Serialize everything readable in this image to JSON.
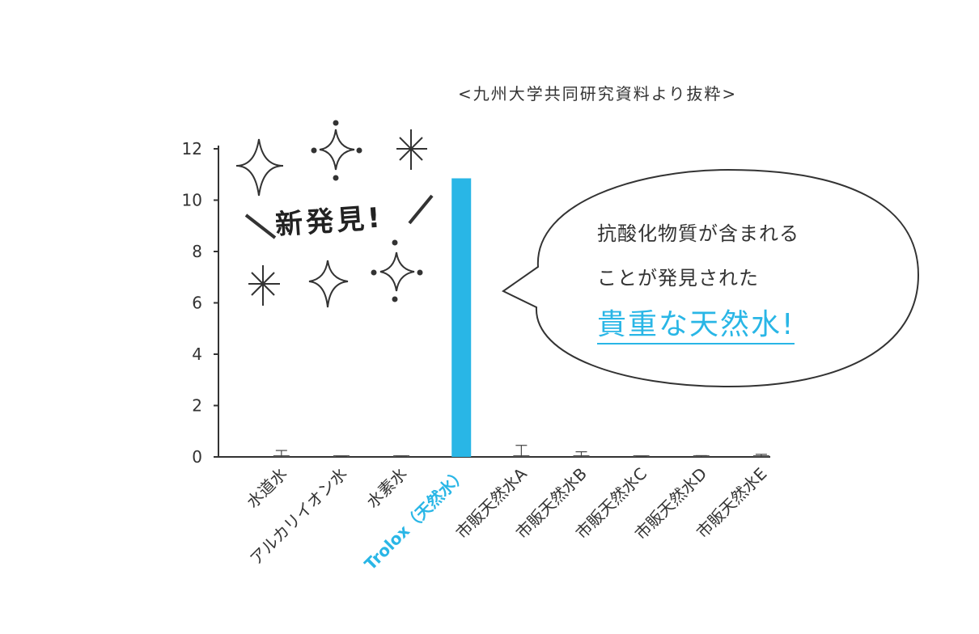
{
  "source_note": "<九州大学共同研究資料より抜粋>",
  "badge": "新発見!",
  "bubble": {
    "line1": "抗酸化物質が含まれる",
    "line2": "ことが発見された",
    "highlight": "貴重な天然水!"
  },
  "colors": {
    "highlight": "#29b6e6",
    "bar": "#29b6e6",
    "axis": "#333333"
  },
  "chart_data": {
    "type": "bar",
    "categories": [
      "水道水",
      "アルカリイオン水",
      "水素水",
      "Trolox（天然水）",
      "市販天然水A",
      "市販天然水B",
      "市販天然水C",
      "市販天然水D",
      "市販天然水E"
    ],
    "values": [
      0.0,
      0.0,
      0.0,
      10.85,
      0.0,
      0.0,
      0.0,
      0.0,
      0.0
    ],
    "error_upper": [
      0.25,
      0.02,
      0.03,
      0.0,
      0.45,
      0.2,
      0.02,
      0.05,
      0.1
    ],
    "highlight_category": "Trolox（天然水）",
    "yticks": [
      0,
      2,
      4,
      6,
      8,
      10,
      12
    ],
    "ylim": [
      0,
      12
    ],
    "title": "",
    "xlabel": "",
    "ylabel": ""
  }
}
